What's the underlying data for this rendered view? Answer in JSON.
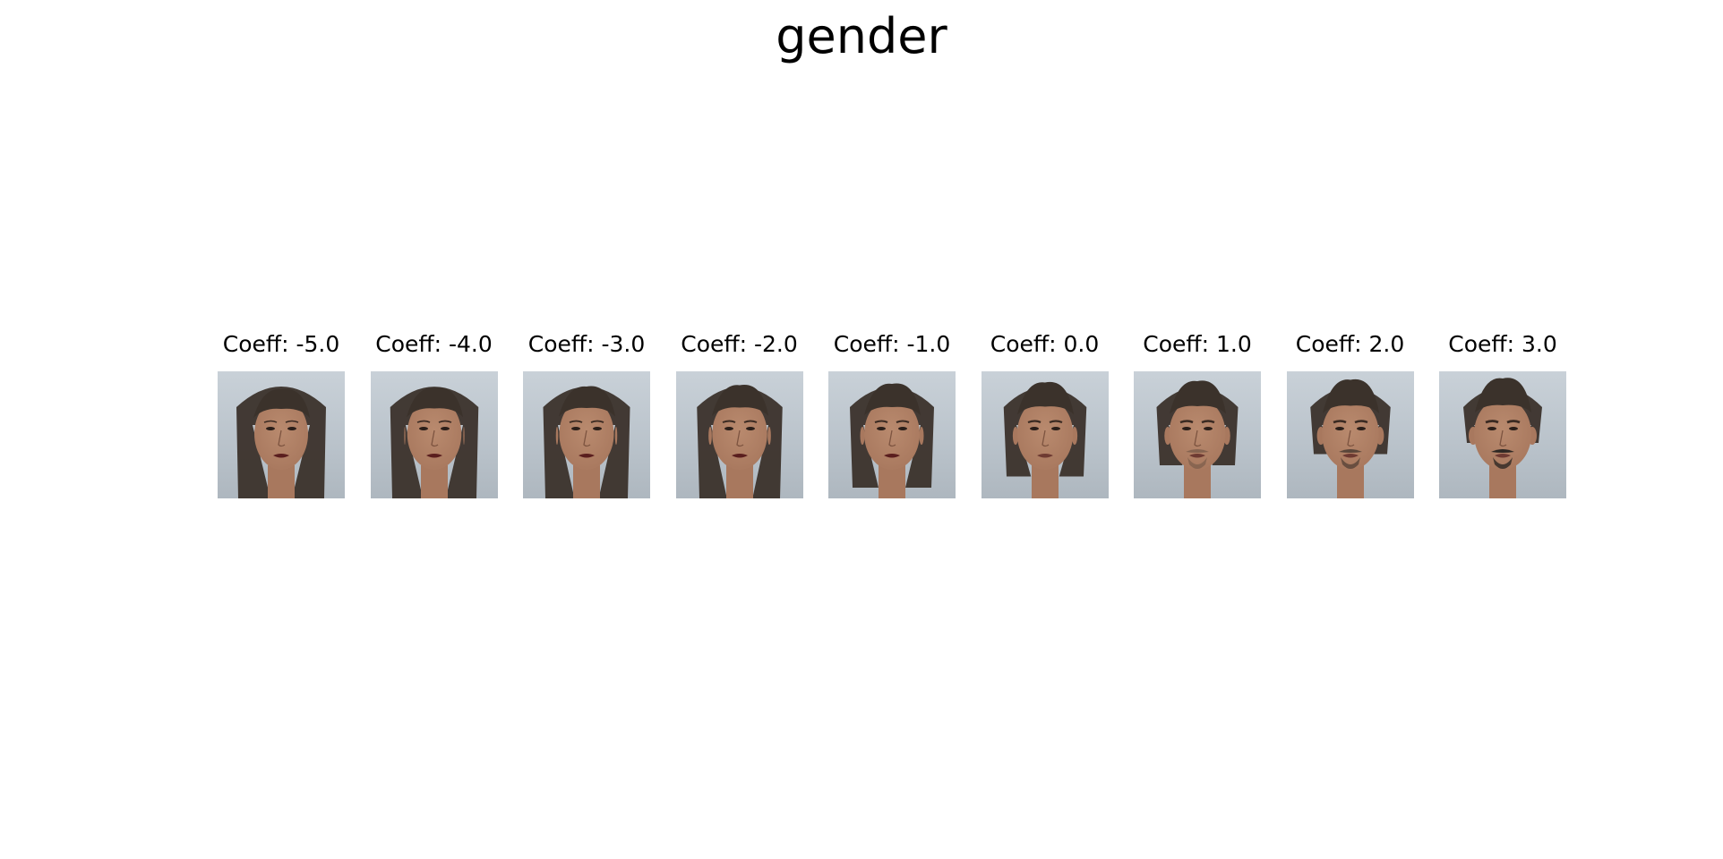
{
  "title": "gender",
  "panels": [
    {
      "caption": "Coeff: -5.0",
      "coeff": -5.0
    },
    {
      "caption": "Coeff: -4.0",
      "coeff": -4.0
    },
    {
      "caption": "Coeff: -3.0",
      "coeff": -3.0
    },
    {
      "caption": "Coeff: -2.0",
      "coeff": -2.0
    },
    {
      "caption": "Coeff: -1.0",
      "coeff": -1.0
    },
    {
      "caption": "Coeff: 0.0",
      "coeff": 0.0
    },
    {
      "caption": "Coeff: 1.0",
      "coeff": 1.0
    },
    {
      "caption": "Coeff: 2.0",
      "coeff": 2.0
    },
    {
      "caption": "Coeff: 3.0",
      "coeff": 3.0
    }
  ],
  "colors": {
    "hair": "#3b322b",
    "skin": "#a8785e",
    "lips": "#5a1e1e",
    "beard": "#2e2824",
    "background": "#c3cbd2"
  }
}
